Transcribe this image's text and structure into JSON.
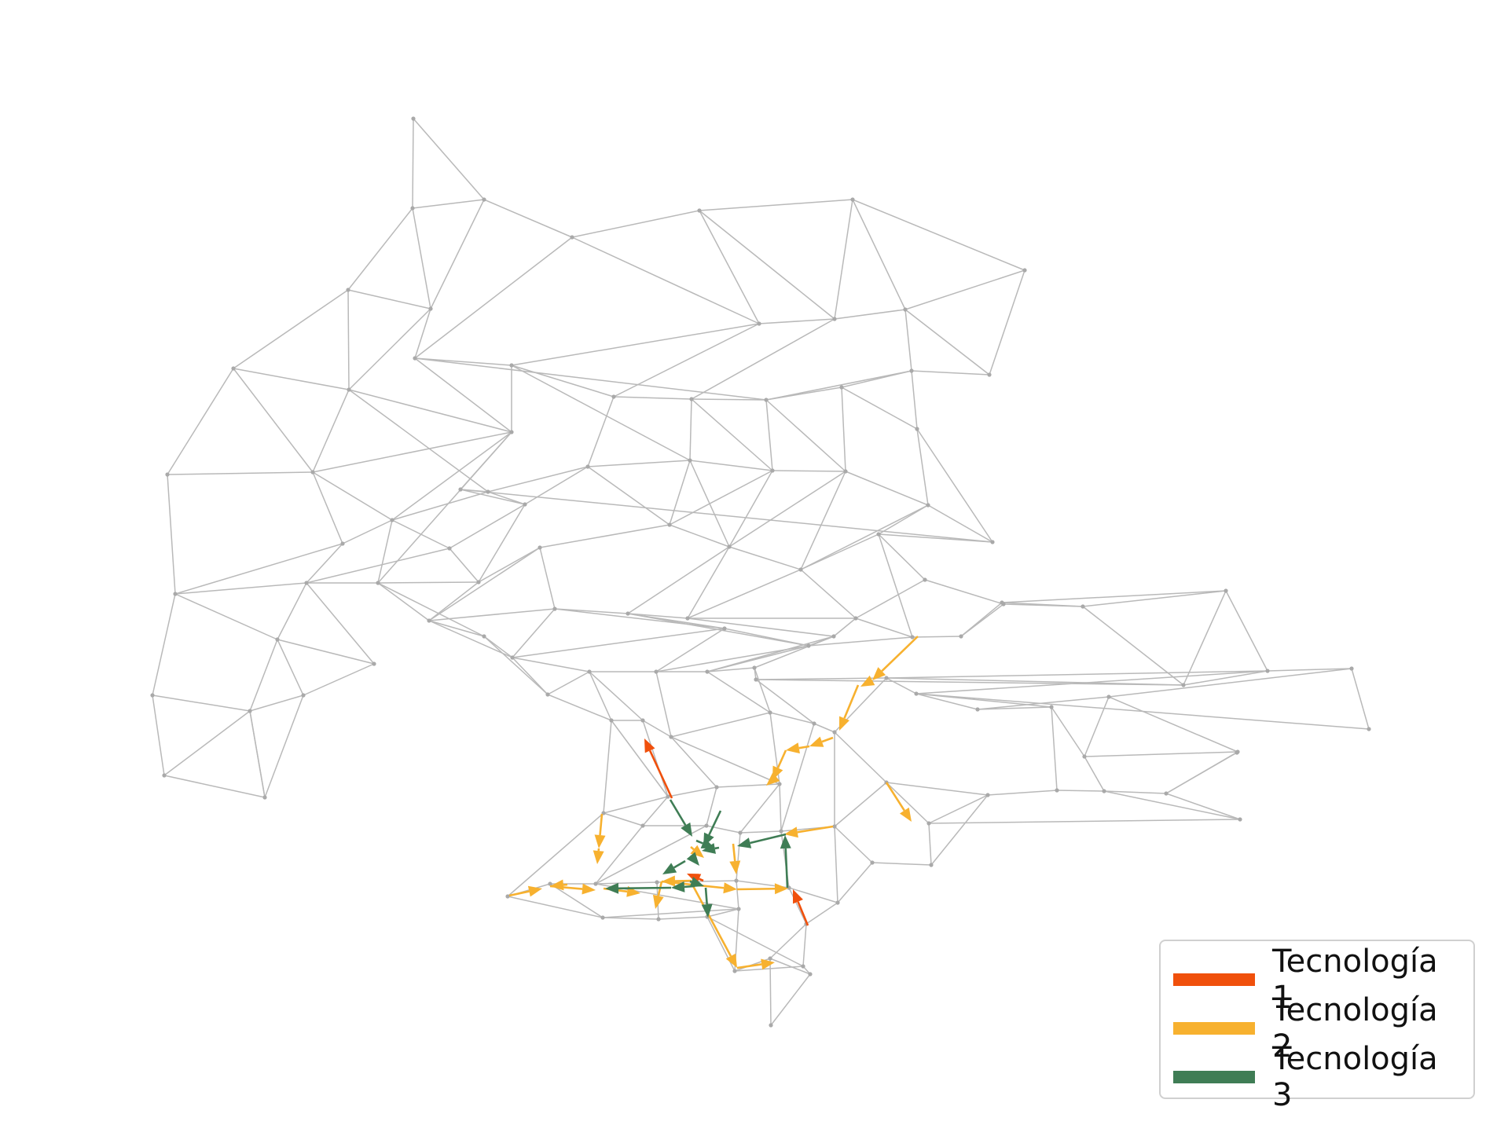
{
  "legend": {
    "items": [
      {
        "label": "Tecnología 1",
        "color": "#f0500c"
      },
      {
        "label": "Tecnología 2",
        "color": "#f7b12f"
      },
      {
        "label": "Tecnología 3",
        "color": "#3f7d55"
      }
    ]
  },
  "colors": {
    "edge": "#b9b9b9",
    "node": "#a9a9a9"
  }
}
